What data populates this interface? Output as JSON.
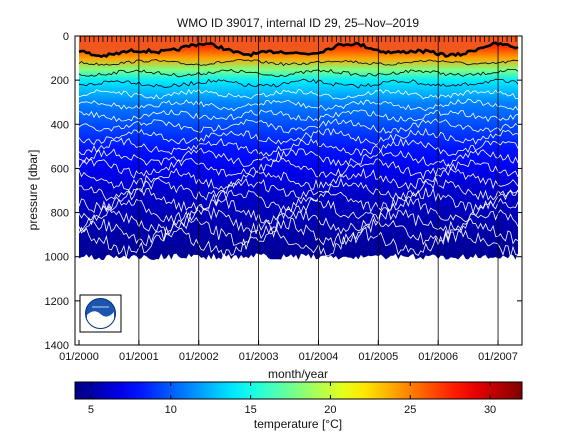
{
  "chart_data": {
    "type": "heatmap",
    "title": "WMO ID 39017, internal ID 29, 25–Nov–2019",
    "xlabel": "month/year",
    "ylabel": "pressure [dbar]",
    "colorbar_label": "temperature [°C]",
    "x_ticks": [
      "01/2000",
      "01/2001",
      "01/2002",
      "01/2003",
      "01/2004",
      "01/2005",
      "01/2006",
      "01/2007"
    ],
    "x_range": [
      "01/2000",
      "05/2007"
    ],
    "y_ticks": [
      0,
      200,
      400,
      600,
      800,
      1000,
      1200,
      1400
    ],
    "y_range": [
      0,
      1400
    ],
    "y_reversed": true,
    "colorbar_ticks": [
      5,
      10,
      15,
      20,
      25,
      30
    ],
    "colorbar_range": [
      4,
      32
    ],
    "colormap": "jet",
    "profile_depth_max_dbar": 1000,
    "temperature_profile_approx": [
      {
        "pressure": 0,
        "temperature": 28
      },
      {
        "pressure": 50,
        "temperature": 27
      },
      {
        "pressure": 100,
        "temperature": 24
      },
      {
        "pressure": 150,
        "temperature": 18
      },
      {
        "pressure": 200,
        "temperature": 14
      },
      {
        "pressure": 300,
        "temperature": 11
      },
      {
        "pressure": 400,
        "temperature": 9.5
      },
      {
        "pressure": 500,
        "temperature": 8
      },
      {
        "pressure": 600,
        "temperature": 7
      },
      {
        "pressure": 700,
        "temperature": 6
      },
      {
        "pressure": 800,
        "temperature": 5.5
      },
      {
        "pressure": 900,
        "temperature": 5
      },
      {
        "pressure": 1000,
        "temperature": 4.5
      }
    ],
    "logo": "noaa-logo",
    "grid": false
  }
}
